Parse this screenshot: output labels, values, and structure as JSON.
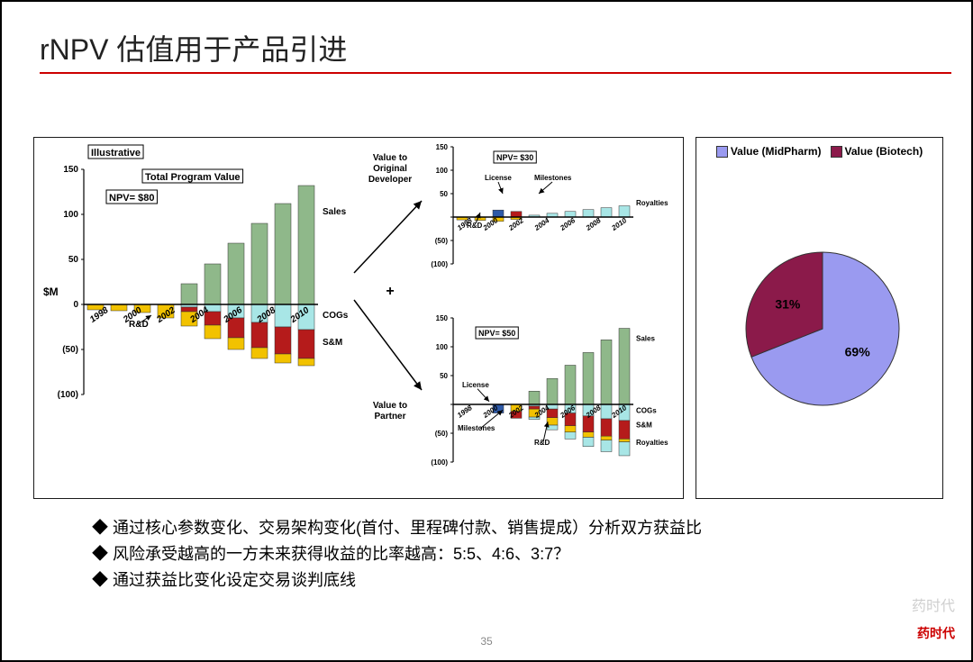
{
  "page": {
    "title": "rNPV 估值用于产品引进",
    "number": "35"
  },
  "watermark": {
    "line1": "药时代",
    "line2": "药时代"
  },
  "colors": {
    "sales": "#8fb88a",
    "cogs": "#a8e6e6",
    "sandm": "#b51b1b",
    "rnd": "#f2c200",
    "axis": "#000",
    "mid": "#9a9af0",
    "bio": "#8b1a4a",
    "border": "#1a1a1a",
    "license": "#2e5aa8",
    "milestone": "#b51b1b",
    "royalty": "#a8e6e6"
  },
  "main": {
    "illustrative": "Illustrative",
    "tpv": "Total Program Value",
    "npv": "NPV= $80",
    "yunit": "$M",
    "ylim": [
      -100,
      150
    ],
    "yticks": [
      -100,
      -50,
      0,
      50,
      100,
      150
    ],
    "ytick_labels": [
      "(100)",
      "(50)",
      "0",
      "50",
      "100",
      "150"
    ],
    "years": [
      "1998",
      "2000",
      "2002",
      "2004",
      "2006",
      "2008",
      "2010"
    ],
    "series": [
      {
        "rnd": -6,
        "cogs": 0,
        "sandm": 0,
        "sales": 0
      },
      {
        "rnd": -7,
        "cogs": 0,
        "sandm": 0,
        "sales": 0
      },
      {
        "rnd": -9,
        "cogs": 0,
        "sandm": 0,
        "sales": 0
      },
      {
        "rnd": -15,
        "cogs": 0,
        "sandm": 0,
        "sales": 0
      },
      {
        "rnd": -16,
        "cogs": -3,
        "sandm": -5,
        "sales": 23
      },
      {
        "rnd": -15,
        "cogs": -8,
        "sandm": -15,
        "sales": 45
      },
      {
        "rnd": -13,
        "cogs": -15,
        "sandm": -22,
        "sales": 68
      },
      {
        "rnd": -12,
        "cogs": -20,
        "sandm": -28,
        "sales": 90
      },
      {
        "rnd": -10,
        "cogs": -25,
        "sandm": -30,
        "sales": 112
      },
      {
        "rnd": -8,
        "cogs": -28,
        "sandm": -32,
        "sales": 132
      }
    ],
    "labels": {
      "sales": "Sales",
      "cogs": "COGs",
      "sandm": "S&M",
      "rnd": "R&D"
    }
  },
  "split": {
    "top_label": "Value to\nOriginal\nDeveloper",
    "bottom_label": "Value to\nPartner",
    "plus": "+"
  },
  "dev": {
    "npv": "NPV= $30",
    "ylim": [
      -100,
      150
    ],
    "yticks": [
      -100,
      -50,
      0,
      50,
      100,
      150
    ],
    "ytick_labels": [
      "(100)",
      "(50)",
      "",
      "50",
      "100",
      "150"
    ],
    "years": [
      "1998",
      "2000",
      "2002",
      "2004",
      "2006",
      "2008",
      "2010"
    ],
    "series": [
      {
        "rnd": -6,
        "lic": 0,
        "mil": 0,
        "roy": 0
      },
      {
        "rnd": -7,
        "lic": 0,
        "mil": 0,
        "roy": 0
      },
      {
        "rnd": -9,
        "lic": 15,
        "mil": 0,
        "roy": 0
      },
      {
        "rnd": -5,
        "lic": 0,
        "mil": 12,
        "roy": 0
      },
      {
        "rnd": 0,
        "lic": 0,
        "mil": 0,
        "roy": 4
      },
      {
        "rnd": 0,
        "lic": 0,
        "mil": 0,
        "roy": 8
      },
      {
        "rnd": 0,
        "lic": 0,
        "mil": 0,
        "roy": 12
      },
      {
        "rnd": 0,
        "lic": 0,
        "mil": 0,
        "roy": 16
      },
      {
        "rnd": 0,
        "lic": 0,
        "mil": 0,
        "roy": 20
      },
      {
        "rnd": 0,
        "lic": 0,
        "mil": 0,
        "roy": 24
      }
    ],
    "labels": {
      "license": "License",
      "milestones": "Milestones",
      "royalties": "Royalties",
      "rnd": "R&D"
    }
  },
  "partner": {
    "npv": "NPV= $50",
    "ylim": [
      -100,
      150
    ],
    "yticks": [
      -100,
      -50,
      0,
      50,
      100,
      150
    ],
    "ytick_labels": [
      "(100)",
      "(50)",
      "",
      "50",
      "100",
      "150"
    ],
    "years": [
      "1998",
      "2000",
      "2002",
      "2004",
      "2006",
      "2008",
      "2010"
    ],
    "series": [
      {
        "rnd": 0,
        "roy": 0,
        "sandm": 0,
        "cogs": 0,
        "mil": 0,
        "lic": 0,
        "sales": 0
      },
      {
        "rnd": 0,
        "roy": 0,
        "sandm": 0,
        "cogs": 0,
        "mil": 0,
        "lic": 0,
        "sales": 0
      },
      {
        "rnd": 0,
        "roy": 0,
        "sandm": 0,
        "cogs": 0,
        "mil": 0,
        "lic": -15,
        "sales": 0
      },
      {
        "rnd": -12,
        "roy": 0,
        "sandm": 0,
        "cogs": 0,
        "mil": -12,
        "lic": 0,
        "sales": 0
      },
      {
        "rnd": -14,
        "roy": -4,
        "sandm": -5,
        "cogs": -3,
        "mil": 0,
        "lic": 0,
        "sales": 23
      },
      {
        "rnd": -13,
        "roy": -8,
        "sandm": -15,
        "cogs": -8,
        "mil": 0,
        "lic": 0,
        "sales": 45
      },
      {
        "rnd": -11,
        "roy": -12,
        "sandm": -22,
        "cogs": -15,
        "mil": 0,
        "lic": 0,
        "sales": 68
      },
      {
        "rnd": -9,
        "roy": -16,
        "sandm": -28,
        "cogs": -20,
        "mil": 0,
        "lic": 0,
        "sales": 90
      },
      {
        "rnd": -7,
        "roy": -20,
        "sandm": -30,
        "cogs": -25,
        "mil": 0,
        "lic": 0,
        "sales": 112
      },
      {
        "rnd": -5,
        "roy": -24,
        "sandm": -32,
        "cogs": -28,
        "mil": 0,
        "lic": 0,
        "sales": 132
      }
    ],
    "labels": {
      "sales": "Sales",
      "cogs": "COGs",
      "sandm": "S&M",
      "rnd": "R&D",
      "royalties": "Royalties",
      "license": "License",
      "milestones": "Milestones"
    }
  },
  "pie": {
    "legend": [
      {
        "label": "Value (MidPharm)",
        "c": "#9a9af0"
      },
      {
        "label": "Value (Biotech)",
        "c": "#8b1a4a"
      }
    ],
    "slices": [
      {
        "label": "69%",
        "v": 69,
        "c": "#9a9af0"
      },
      {
        "label": "31%",
        "v": 31,
        "c": "#8b1a4a"
      }
    ]
  },
  "bullets": [
    "通过核心参数变化、交易架构变化(首付、里程碑付款、销售提成）分析双方获益比",
    "风险承受越高的一方未来获得收益的比率越高：5:5、4:6、3:7？",
    "通过获益比变化设定交易谈判底线"
  ]
}
